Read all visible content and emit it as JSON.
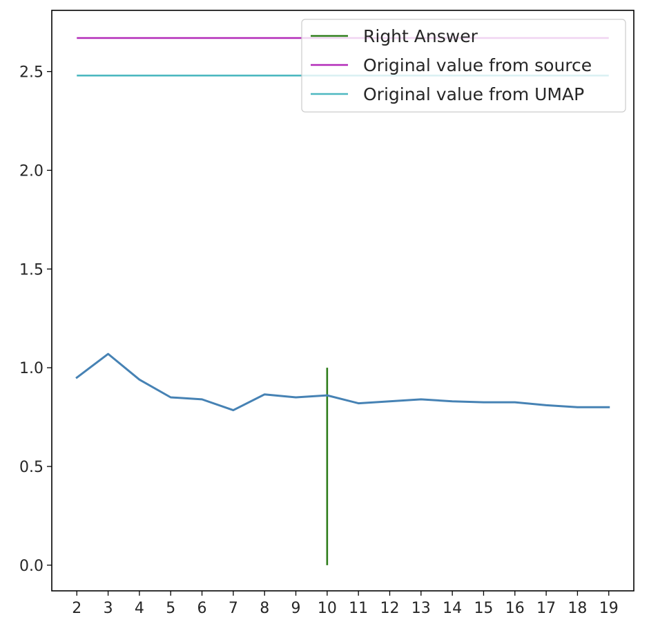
{
  "chart_data": {
    "type": "line",
    "title": "",
    "xlabel": "",
    "ylabel": "",
    "x": [
      2,
      3,
      4,
      5,
      6,
      7,
      8,
      9,
      10,
      11,
      12,
      13,
      14,
      15,
      16,
      17,
      18,
      19
    ],
    "xlim": [
      1.2,
      19.8
    ],
    "ylim": [
      -0.13,
      2.81
    ],
    "yticks": [
      0.0,
      0.5,
      1.0,
      1.5,
      2.0,
      2.5
    ],
    "grid": false,
    "legend_position": "top-right",
    "series": [
      {
        "values": [
          0.95,
          1.07,
          0.94,
          0.85,
          0.84,
          0.785,
          0.865,
          0.85,
          0.86,
          0.82,
          0.83,
          0.84,
          0.83,
          0.825,
          0.825,
          0.81,
          0.8,
          0.8
        ],
        "color": "#4682b4"
      }
    ],
    "reference_lines": [
      {
        "name": "Right Answer",
        "orientation": "vertical",
        "x": 10,
        "y_range": [
          0,
          1
        ],
        "color": "#2e7d1a"
      },
      {
        "name": "Original value from source",
        "orientation": "horizontal",
        "y": 2.67,
        "x_range": [
          2,
          19
        ],
        "color": "#b22ab8"
      },
      {
        "name": "Original value from UMAP",
        "orientation": "horizontal",
        "y": 2.48,
        "x_range": [
          2,
          19
        ],
        "color": "#4cb8c0"
      }
    ]
  }
}
